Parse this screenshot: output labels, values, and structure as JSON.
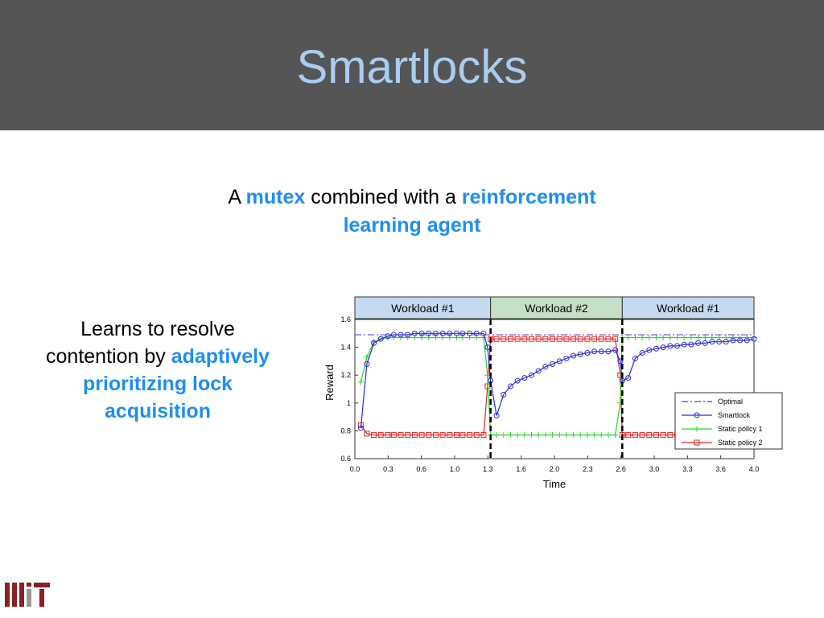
{
  "slide": {
    "title": "Smartlocks",
    "subtitle_parts": [
      "A ",
      "mutex",
      " combined with a ",
      "reinforcement learning agent"
    ],
    "left_parts": [
      "Learns to resolve contention by ",
      "adaptively prioritizing lock acquisition"
    ],
    "accent_color": "#1f8ef0",
    "header_color": "#555555",
    "title_color": "#a9cdf2",
    "logo_icon": "mit-logo-icon"
  },
  "chart_data": {
    "type": "line",
    "xlabel": "Time",
    "ylabel": "Reward",
    "xlim": [
      0.0,
      4.0
    ],
    "ylim": [
      0.6,
      1.6
    ],
    "xticks": [
      "0.0",
      "0.3",
      "0.6",
      "1.0",
      "1.3",
      "1.6",
      "2.0",
      "2.3",
      "2.6",
      "3.0",
      "3.3",
      "3.6",
      "4.0"
    ],
    "yticks": [
      "0.6",
      "0.8",
      "1",
      "1.2",
      "1.4",
      "1.6"
    ],
    "workloads": [
      {
        "label": "Workload #1",
        "start": 0.0,
        "end": 1.36,
        "color": "#c5d9f1"
      },
      {
        "label": "Workload #2",
        "start": 1.36,
        "end": 2.68,
        "color": "#c6e0c6"
      },
      {
        "label": "Workload #1",
        "start": 2.68,
        "end": 4.0,
        "color": "#c5d9f1"
      }
    ],
    "phase_changes": [
      1.36,
      2.68
    ],
    "legend_position": "bottom-right",
    "series": [
      {
        "name": "Optimal",
        "color": "#4040d0",
        "style": "dashdot",
        "marker": "none",
        "x": [
          0.0,
          4.0
        ],
        "y": [
          1.49,
          1.49
        ]
      },
      {
        "name": "Smartlock",
        "color": "#2a2adf",
        "style": "solid",
        "marker": "circle",
        "x": [
          0.06,
          0.12,
          0.19,
          0.26,
          0.33,
          0.39,
          0.46,
          0.53,
          0.6,
          0.67,
          0.74,
          0.81,
          0.88,
          0.95,
          1.02,
          1.08,
          1.15,
          1.22,
          1.29,
          1.33,
          1.36,
          1.42,
          1.49,
          1.56,
          1.63,
          1.7,
          1.77,
          1.84,
          1.91,
          1.98,
          2.05,
          2.12,
          2.19,
          2.26,
          2.33,
          2.4,
          2.47,
          2.54,
          2.61,
          2.66,
          2.68,
          2.74,
          2.81,
          2.88,
          2.95,
          3.02,
          3.09,
          3.16,
          3.23,
          3.3,
          3.37,
          3.44,
          3.51,
          3.58,
          3.65,
          3.72,
          3.79,
          3.86,
          3.93,
          4.0
        ],
        "y": [
          0.82,
          1.28,
          1.43,
          1.46,
          1.48,
          1.49,
          1.49,
          1.49,
          1.5,
          1.5,
          1.5,
          1.5,
          1.5,
          1.5,
          1.5,
          1.5,
          1.5,
          1.5,
          1.5,
          1.4,
          1.16,
          0.91,
          1.06,
          1.12,
          1.16,
          1.18,
          1.2,
          1.23,
          1.26,
          1.28,
          1.3,
          1.32,
          1.34,
          1.35,
          1.36,
          1.37,
          1.37,
          1.37,
          1.38,
          1.3,
          1.16,
          1.18,
          1.32,
          1.36,
          1.38,
          1.39,
          1.4,
          1.41,
          1.41,
          1.42,
          1.42,
          1.43,
          1.43,
          1.44,
          1.44,
          1.44,
          1.45,
          1.45,
          1.45,
          1.46
        ]
      },
      {
        "name": "Static policy 1",
        "color": "#22dd22",
        "style": "solid",
        "marker": "plus",
        "x": [
          0.06,
          0.12,
          0.19,
          0.26,
          0.33,
          0.39,
          0.46,
          0.53,
          0.6,
          0.67,
          0.74,
          0.81,
          0.88,
          0.95,
          1.02,
          1.08,
          1.15,
          1.22,
          1.29,
          1.33,
          1.36,
          1.42,
          1.49,
          1.56,
          1.63,
          1.7,
          1.77,
          1.84,
          1.91,
          1.98,
          2.05,
          2.12,
          2.19,
          2.26,
          2.33,
          2.4,
          2.47,
          2.54,
          2.61,
          2.66,
          2.68,
          2.74,
          2.81,
          2.88,
          2.95,
          3.02,
          3.09,
          3.16,
          3.23,
          3.3,
          3.37,
          3.44,
          3.51,
          3.58,
          3.65,
          3.72,
          3.79,
          3.86,
          3.93,
          4.0
        ],
        "y": [
          1.15,
          1.33,
          1.44,
          1.46,
          1.47,
          1.47,
          1.47,
          1.47,
          1.47,
          1.47,
          1.47,
          1.47,
          1.47,
          1.47,
          1.47,
          1.47,
          1.47,
          1.47,
          1.47,
          1.2,
          0.77,
          0.77,
          0.77,
          0.77,
          0.77,
          0.77,
          0.77,
          0.77,
          0.77,
          0.77,
          0.77,
          0.77,
          0.77,
          0.77,
          0.77,
          0.77,
          0.77,
          0.77,
          0.77,
          1.0,
          1.47,
          1.47,
          1.47,
          1.47,
          1.47,
          1.47,
          1.47,
          1.47,
          1.47,
          1.47,
          1.47,
          1.47,
          1.47,
          1.47,
          1.47,
          1.47,
          1.47,
          1.47,
          1.47,
          1.47
        ]
      },
      {
        "name": "Static policy 2",
        "color": "#ee2222",
        "style": "solid",
        "marker": "square",
        "x": [
          0.06,
          0.12,
          0.19,
          0.26,
          0.33,
          0.39,
          0.46,
          0.53,
          0.6,
          0.67,
          0.74,
          0.81,
          0.88,
          0.95,
          1.02,
          1.08,
          1.15,
          1.22,
          1.29,
          1.33,
          1.36,
          1.42,
          1.49,
          1.56,
          1.63,
          1.7,
          1.77,
          1.84,
          1.91,
          1.98,
          2.05,
          2.12,
          2.19,
          2.26,
          2.33,
          2.4,
          2.47,
          2.54,
          2.61,
          2.66,
          2.68,
          2.74,
          2.81,
          2.88,
          2.95,
          3.02,
          3.09,
          3.16,
          3.23,
          3.3,
          3.37,
          3.44
        ],
        "y": [
          0.84,
          0.78,
          0.77,
          0.77,
          0.77,
          0.77,
          0.77,
          0.77,
          0.77,
          0.77,
          0.77,
          0.77,
          0.77,
          0.77,
          0.77,
          0.77,
          0.77,
          0.77,
          0.77,
          1.12,
          1.46,
          1.46,
          1.46,
          1.46,
          1.46,
          1.46,
          1.46,
          1.46,
          1.46,
          1.46,
          1.46,
          1.46,
          1.46,
          1.46,
          1.46,
          1.46,
          1.46,
          1.46,
          1.46,
          1.2,
          0.77,
          0.77,
          0.77,
          0.77,
          0.77,
          0.77,
          0.77,
          0.77,
          0.77,
          0.77,
          0.77,
          0.77
        ]
      }
    ]
  }
}
